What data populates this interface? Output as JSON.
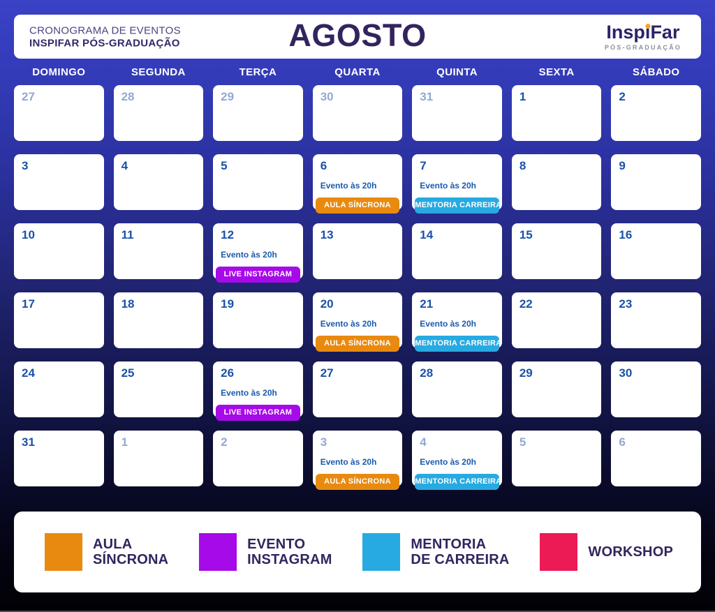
{
  "header": {
    "subtitle_line1": "CRONOGRAMA DE EVENTOS",
    "subtitle_line2": "INSPIFAR PÓS-GRADUAÇÃO",
    "month_title": "AGOSTO",
    "logo": {
      "part1": "Insp",
      "i_char": "i",
      "part2": "Far",
      "tagline": "PÓS-GRADUAÇÃO",
      "dot_color": "#F7A41A"
    }
  },
  "weekdays": [
    "DOMINGO",
    "SEGUNDA",
    "TERÇA",
    "QUARTA",
    "QUINTA",
    "SEXTA",
    "SÁBADO"
  ],
  "event_colors": {
    "aula": "#E98A10",
    "mentoria": "#27AAE1",
    "instagram": "#A70AE8",
    "workshop": "#EC1A55"
  },
  "days": [
    {
      "num": "27",
      "muted": true
    },
    {
      "num": "28",
      "muted": true
    },
    {
      "num": "29",
      "muted": true
    },
    {
      "num": "30",
      "muted": true
    },
    {
      "num": "31",
      "muted": true
    },
    {
      "num": "1",
      "muted": false
    },
    {
      "num": "2",
      "muted": false
    },
    {
      "num": "3",
      "muted": false
    },
    {
      "num": "4",
      "muted": false
    },
    {
      "num": "5",
      "muted": false
    },
    {
      "num": "6",
      "muted": false,
      "event": {
        "time": "Evento às 20h",
        "label": "AULA SÍNCRONA",
        "type": "aula"
      }
    },
    {
      "num": "7",
      "muted": false,
      "event": {
        "time": "Evento às 20h",
        "label": "MENTORIA CARREIRA",
        "type": "mentoria"
      }
    },
    {
      "num": "8",
      "muted": false
    },
    {
      "num": "9",
      "muted": false
    },
    {
      "num": "10",
      "muted": false
    },
    {
      "num": "11",
      "muted": false
    },
    {
      "num": "12",
      "muted": false,
      "event": {
        "time": "Evento às 20h",
        "label": "LIVE INSTAGRAM",
        "type": "instagram"
      }
    },
    {
      "num": "13",
      "muted": false
    },
    {
      "num": "14",
      "muted": false
    },
    {
      "num": "15",
      "muted": false
    },
    {
      "num": "16",
      "muted": false
    },
    {
      "num": "17",
      "muted": false
    },
    {
      "num": "18",
      "muted": false
    },
    {
      "num": "19",
      "muted": false
    },
    {
      "num": "20",
      "muted": false,
      "event": {
        "time": "Evento às 20h",
        "label": "AULA SÍNCRONA",
        "type": "aula"
      }
    },
    {
      "num": "21",
      "muted": false,
      "event": {
        "time": "Evento às 20h",
        "label": "MENTORIA CARREIRA",
        "type": "mentoria"
      }
    },
    {
      "num": "22",
      "muted": false
    },
    {
      "num": "23",
      "muted": false
    },
    {
      "num": "24",
      "muted": false
    },
    {
      "num": "25",
      "muted": false
    },
    {
      "num": "26",
      "muted": false,
      "event": {
        "time": "Evento às 20h",
        "label": "LIVE INSTAGRAM",
        "type": "instagram"
      }
    },
    {
      "num": "27",
      "muted": false
    },
    {
      "num": "28",
      "muted": false
    },
    {
      "num": "29",
      "muted": false
    },
    {
      "num": "30",
      "muted": false
    },
    {
      "num": "31",
      "muted": false
    },
    {
      "num": "1",
      "muted": true
    },
    {
      "num": "2",
      "muted": true
    },
    {
      "num": "3",
      "muted": true,
      "event": {
        "time": "Evento às 20h",
        "label": "AULA SÍNCRONA",
        "type": "aula"
      }
    },
    {
      "num": "4",
      "muted": true,
      "event": {
        "time": "Evento às 20h",
        "label": "MENTORIA CARREIRA",
        "type": "mentoria"
      }
    },
    {
      "num": "5",
      "muted": true
    },
    {
      "num": "6",
      "muted": true
    }
  ],
  "legend": [
    {
      "lines": [
        "AULA",
        "SÍNCRONA"
      ],
      "type": "aula",
      "color": "#E98A10"
    },
    {
      "lines": [
        "EVENTO",
        "INSTAGRAM"
      ],
      "type": "instagram",
      "color": "#A70AE8"
    },
    {
      "lines": [
        "MENTORIA",
        "DE CARREIRA"
      ],
      "type": "mentoria",
      "color": "#27AAE1"
    },
    {
      "lines": [
        "WORKSHOP"
      ],
      "type": "workshop",
      "color": "#EC1A55"
    }
  ]
}
